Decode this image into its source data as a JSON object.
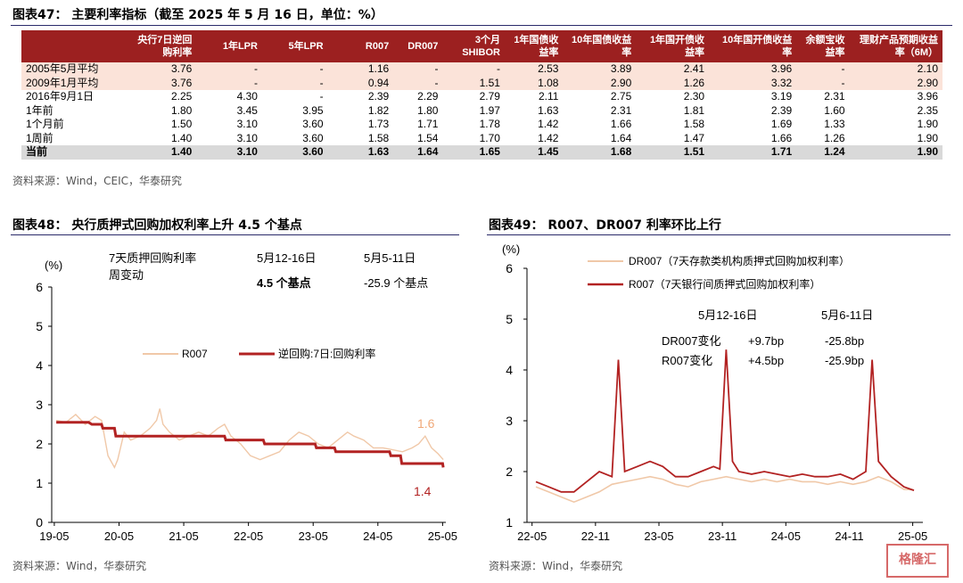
{
  "fig47": {
    "title": "图表47：  主要利率指标（截至 2025 年 5 月 16 日，单位：%）",
    "headers": [
      "",
      "央行7日逆回购利率",
      "1年LPR",
      "5年LPR",
      "R007",
      "DR007",
      "3个月SHIBOR",
      "1年国债收益率",
      "10年国债收益率",
      "1年国开债收益率",
      "10年国开债收益率",
      "余额宝收益率",
      "理财产品预期收益率（6M）"
    ],
    "rows": [
      {
        "label": "2005年5月平均",
        "cells": [
          "3.76",
          "-",
          "-",
          "1.16",
          "-",
          "-",
          "2.53",
          "3.89",
          "2.41",
          "3.96",
          "-",
          "2.10"
        ]
      },
      {
        "label": "2009年1月平均",
        "cells": [
          "3.76",
          "-",
          "-",
          "0.94",
          "-",
          "1.51",
          "1.08",
          "2.90",
          "1.26",
          "3.32",
          "-",
          "2.90"
        ]
      },
      {
        "label": "2016年9月1日",
        "cells": [
          "2.25",
          "4.30",
          "-",
          "2.39",
          "2.29",
          "2.79",
          "2.11",
          "2.75",
          "2.30",
          "3.19",
          "2.31",
          "3.96"
        ]
      },
      {
        "label": "1年前",
        "cells": [
          "1.80",
          "3.45",
          "3.95",
          "1.82",
          "1.80",
          "1.97",
          "1.63",
          "2.31",
          "1.81",
          "2.39",
          "1.60",
          "2.35"
        ]
      },
      {
        "label": "1个月前",
        "cells": [
          "1.50",
          "3.10",
          "3.60",
          "1.73",
          "1.71",
          "1.78",
          "1.42",
          "1.66",
          "1.58",
          "1.69",
          "1.33",
          "1.90"
        ]
      },
      {
        "label": "1周前",
        "cells": [
          "1.40",
          "3.10",
          "3.60",
          "1.58",
          "1.54",
          "1.70",
          "1.42",
          "1.64",
          "1.47",
          "1.66",
          "1.26",
          "1.90"
        ]
      },
      {
        "label": "当前",
        "cells": [
          "1.40",
          "3.10",
          "3.60",
          "1.63",
          "1.64",
          "1.65",
          "1.45",
          "1.68",
          "1.51",
          "1.71",
          "1.24",
          "1.90"
        ]
      }
    ],
    "source": "资料来源：Wind，CEIC，华泰研究"
  },
  "chart_data": [
    {
      "type": "line",
      "title": "图表48：  央行质押式回购加权利率上升 4.5 个基点",
      "ylabel": "(%)",
      "ylim": [
        0,
        6
      ],
      "yticks": [
        "0",
        "1",
        "2",
        "3",
        "4",
        "5",
        "6"
      ],
      "xticks": [
        "19-05",
        "20-05",
        "21-05",
        "22-05",
        "23-05",
        "24-05",
        "25-05"
      ],
      "series": [
        {
          "name": "R007",
          "color": "#f0c8a8",
          "points": [
            [
              2019.4,
              2.6
            ],
            [
              2019.55,
              2.55
            ],
            [
              2019.7,
              2.75
            ],
            [
              2019.85,
              2.5
            ],
            [
              2020.0,
              2.7
            ],
            [
              2020.1,
              2.6
            ],
            [
              2020.2,
              1.7
            ],
            [
              2020.3,
              1.4
            ],
            [
              2020.35,
              1.6
            ],
            [
              2020.45,
              2.3
            ],
            [
              2020.55,
              2.1
            ],
            [
              2020.7,
              2.2
            ],
            [
              2020.85,
              2.4
            ],
            [
              2020.95,
              2.6
            ],
            [
              2021.0,
              2.9
            ],
            [
              2021.05,
              2.5
            ],
            [
              2021.15,
              2.3
            ],
            [
              2021.3,
              2.1
            ],
            [
              2021.45,
              2.2
            ],
            [
              2021.6,
              2.3
            ],
            [
              2021.75,
              2.2
            ],
            [
              2021.9,
              2.4
            ],
            [
              2022.0,
              2.5
            ],
            [
              2022.1,
              2.2
            ],
            [
              2022.25,
              2.0
            ],
            [
              2022.4,
              1.7
            ],
            [
              2022.55,
              1.6
            ],
            [
              2022.7,
              1.7
            ],
            [
              2022.85,
              1.8
            ],
            [
              2023.0,
              2.1
            ],
            [
              2023.15,
              2.3
            ],
            [
              2023.3,
              2.2
            ],
            [
              2023.45,
              2.0
            ],
            [
              2023.6,
              1.9
            ],
            [
              2023.75,
              2.1
            ],
            [
              2023.9,
              2.3
            ],
            [
              2024.0,
              2.2
            ],
            [
              2024.15,
              2.1
            ],
            [
              2024.3,
              1.9
            ],
            [
              2024.45,
              1.9
            ],
            [
              2024.6,
              1.85
            ],
            [
              2024.75,
              1.8
            ],
            [
              2024.9,
              1.9
            ],
            [
              2025.0,
              2.0
            ],
            [
              2025.1,
              2.2
            ],
            [
              2025.2,
              1.9
            ],
            [
              2025.3,
              1.75
            ],
            [
              2025.38,
              1.6
            ]
          ]
        },
        {
          "name": "逆回购:7日:回购利率",
          "color": "#b22222",
          "points": [
            [
              2019.4,
              2.55
            ],
            [
              2019.9,
              2.55
            ],
            [
              2019.95,
              2.5
            ],
            [
              2020.1,
              2.5
            ],
            [
              2020.12,
              2.4
            ],
            [
              2020.3,
              2.4
            ],
            [
              2020.32,
              2.2
            ],
            [
              2022.0,
              2.2
            ],
            [
              2022.02,
              2.1
            ],
            [
              2022.6,
              2.1
            ],
            [
              2022.62,
              2.0
            ],
            [
              2023.4,
              2.0
            ],
            [
              2023.42,
              1.9
            ],
            [
              2023.7,
              1.9
            ],
            [
              2023.72,
              1.8
            ],
            [
              2024.55,
              1.8
            ],
            [
              2024.57,
              1.7
            ],
            [
              2024.72,
              1.7
            ],
            [
              2024.74,
              1.5
            ],
            [
              2025.37,
              1.5
            ],
            [
              2025.38,
              1.4
            ]
          ]
        }
      ],
      "legend": [
        "R007",
        "逆回购:7日:回购利率"
      ],
      "box": {
        "h1": "7天质押回购利率",
        "h2": "周变动",
        "c1": "5月12-16日",
        "c2": "5月5-11日",
        "v1": "4.5  个基点",
        "v2": "-25.9  个基点"
      },
      "annotations": {
        "last_r007": "1.6",
        "last_rev": "1.4"
      },
      "source": "资料来源：Wind，华泰研究"
    },
    {
      "type": "line",
      "title": "图表49：  R007、DR007 利率环比上行",
      "ylabel": "(%)",
      "ylim": [
        1,
        6
      ],
      "yticks": [
        "1",
        "2",
        "3",
        "4",
        "5",
        "6"
      ],
      "xticks": [
        "22-05",
        "22-11",
        "23-05",
        "23-11",
        "24-05",
        "24-11",
        "25-05"
      ],
      "series": [
        {
          "name": "DR007（7天存款类机构质押式回购加权利率）",
          "color": "#f0c8a8",
          "points": [
            [
              2022.4,
              1.7
            ],
            [
              2022.5,
              1.6
            ],
            [
              2022.6,
              1.5
            ],
            [
              2022.7,
              1.4
            ],
            [
              2022.8,
              1.5
            ],
            [
              2022.9,
              1.6
            ],
            [
              2023.0,
              1.75
            ],
            [
              2023.1,
              1.8
            ],
            [
              2023.2,
              1.85
            ],
            [
              2023.3,
              1.9
            ],
            [
              2023.4,
              1.85
            ],
            [
              2023.5,
              1.75
            ],
            [
              2023.6,
              1.7
            ],
            [
              2023.7,
              1.8
            ],
            [
              2023.8,
              1.85
            ],
            [
              2023.9,
              1.9
            ],
            [
              2024.0,
              1.85
            ],
            [
              2024.1,
              1.8
            ],
            [
              2024.2,
              1.85
            ],
            [
              2024.3,
              1.8
            ],
            [
              2024.4,
              1.85
            ],
            [
              2024.5,
              1.8
            ],
            [
              2024.6,
              1.8
            ],
            [
              2024.7,
              1.75
            ],
            [
              2024.8,
              1.8
            ],
            [
              2024.9,
              1.75
            ],
            [
              2025.0,
              1.8
            ],
            [
              2025.1,
              1.9
            ],
            [
              2025.2,
              1.8
            ],
            [
              2025.3,
              1.65
            ],
            [
              2025.38,
              1.64
            ]
          ]
        },
        {
          "name": "R007（7天银行间质押式回购加权利率）",
          "color": "#b22222",
          "points": [
            [
              2022.4,
              1.8
            ],
            [
              2022.5,
              1.7
            ],
            [
              2022.6,
              1.6
            ],
            [
              2022.7,
              1.6
            ],
            [
              2022.8,
              1.8
            ],
            [
              2022.9,
              2.0
            ],
            [
              2023.0,
              1.9
            ],
            [
              2023.05,
              4.2
            ],
            [
              2023.1,
              2.0
            ],
            [
              2023.2,
              2.1
            ],
            [
              2023.3,
              2.2
            ],
            [
              2023.4,
              2.1
            ],
            [
              2023.5,
              1.9
            ],
            [
              2023.6,
              1.9
            ],
            [
              2023.7,
              2.0
            ],
            [
              2023.8,
              2.1
            ],
            [
              2023.85,
              2.05
            ],
            [
              2023.9,
              4.4
            ],
            [
              2023.95,
              2.2
            ],
            [
              2024.0,
              2.0
            ],
            [
              2024.1,
              1.95
            ],
            [
              2024.2,
              2.0
            ],
            [
              2024.3,
              1.95
            ],
            [
              2024.4,
              1.9
            ],
            [
              2024.5,
              1.95
            ],
            [
              2024.6,
              1.9
            ],
            [
              2024.7,
              1.9
            ],
            [
              2024.8,
              1.95
            ],
            [
              2024.9,
              1.85
            ],
            [
              2025.0,
              2.0
            ],
            [
              2025.05,
              4.2
            ],
            [
              2025.1,
              2.2
            ],
            [
              2025.2,
              1.9
            ],
            [
              2025.3,
              1.7
            ],
            [
              2025.38,
              1.63
            ]
          ]
        }
      ],
      "legend": [
        "DR007（7天存款类机构质押式回购加权利率）",
        "R007（7天银行间质押式回购加权利率）"
      ],
      "box": {
        "c1": "5月12-16日",
        "c2": "5月6-11日",
        "r1": "DR007变化",
        "r2": "R007变化",
        "v1a": "+9.7bp",
        "v1b": "+4.5bp",
        "v2a": "-25.8bp",
        "v2b": "-25.9bp"
      },
      "source": "资料来源：Wind，华泰研究"
    }
  ]
}
